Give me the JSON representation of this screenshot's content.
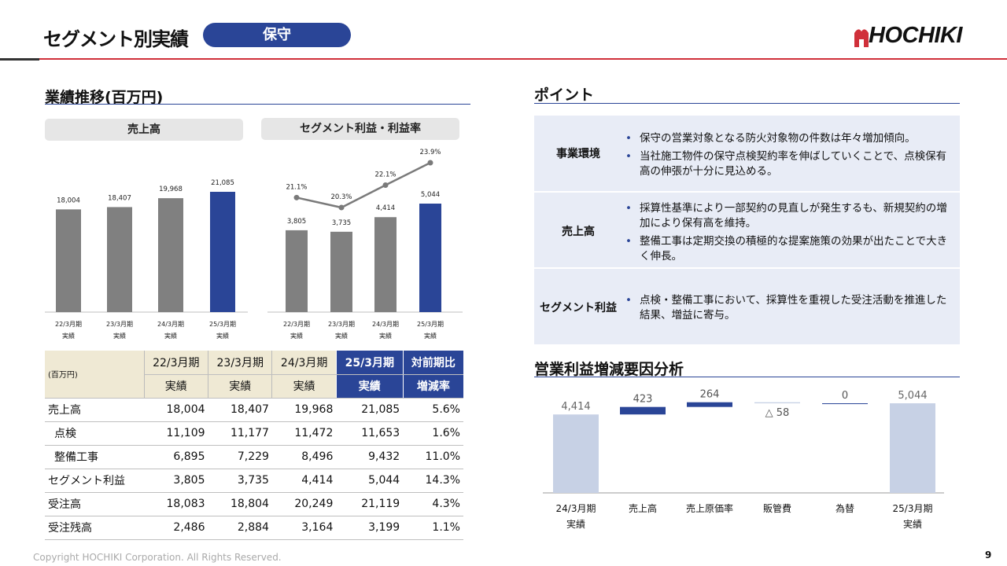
{
  "header": {
    "title": "セグメント別実績",
    "segment": "保守",
    "logo_text": "HOCHIKI"
  },
  "performance": {
    "title": "業績推移(百万円)"
  },
  "chart_data": [
    {
      "type": "bar",
      "title": "売上高",
      "categories": [
        "22/3月期 実績",
        "23/3月期 実績",
        "24/3月期 実績",
        "25/3月期 実績"
      ],
      "category_lines": [
        [
          "22/3月期",
          "実績"
        ],
        [
          "23/3月期",
          "実績"
        ],
        [
          "24/3月期",
          "実績"
        ],
        [
          "25/3月期",
          "実績"
        ]
      ],
      "values": [
        18004,
        18407,
        19968,
        21085
      ],
      "value_labels": [
        "18,004",
        "18,407",
        "19,968",
        "21,085"
      ],
      "colors": [
        "#808080",
        "#808080",
        "#808080",
        "#2a4597"
      ]
    },
    {
      "type": "bar",
      "title": "セグメント利益・利益率",
      "categories": [
        "22/3月期 実績",
        "23/3月期 実績",
        "24/3月期 実績",
        "25/3月期 実績"
      ],
      "category_lines": [
        [
          "22/3月期",
          "実績"
        ],
        [
          "23/3月期",
          "実績"
        ],
        [
          "24/3月期",
          "実績"
        ],
        [
          "25/3月期",
          "実績"
        ]
      ],
      "series": [
        {
          "type": "bar",
          "values": [
            3805,
            3735,
            4414,
            5044
          ],
          "value_labels": [
            "3,805",
            "3,735",
            "4,414",
            "5,044"
          ]
        },
        {
          "type": "line",
          "values": [
            21.1,
            20.3,
            22.1,
            23.9
          ],
          "value_labels": [
            "21.1%",
            "20.3%",
            "22.1%",
            "23.9%"
          ],
          "color": "#7a7a7a"
        }
      ],
      "colors": [
        "#808080",
        "#808080",
        "#808080",
        "#2a4597"
      ]
    },
    {
      "type": "bar",
      "subtype": "waterfall",
      "title": "営業利益増減要因分析",
      "categories": [
        "24/3月期 実績",
        "売上高",
        "売上原価率",
        "販管費",
        "為替",
        "25/3月期 実績"
      ],
      "category_lines": [
        [
          "24/3月期",
          "実績"
        ],
        [
          "売上高"
        ],
        [
          "売上原価率"
        ],
        [
          "販管費"
        ],
        [
          "為替"
        ],
        [
          "25/3月期",
          "実績"
        ]
      ],
      "values": [
        4414,
        423,
        264,
        -58,
        0,
        5044
      ],
      "value_labels": [
        "4,414",
        "423",
        "264",
        "△ 58",
        "0",
        "5,044"
      ],
      "colors": {
        "total": "#c7d1e5",
        "increase": "#2a4597",
        "decrease": "#c7d1e5"
      }
    }
  ],
  "table": {
    "unit": "(百万円)",
    "headers": [
      [
        "22/3月期",
        "実績"
      ],
      [
        "23/3月期",
        "実績"
      ],
      [
        "24/3月期",
        "実績"
      ],
      [
        "25/3月期",
        "実績"
      ],
      [
        "対前期比",
        "増減率"
      ]
    ],
    "rows": [
      {
        "label": "売上高",
        "indent": false,
        "values": [
          "18,004",
          "18,407",
          "19,968",
          "21,085",
          "5.6%"
        ]
      },
      {
        "label": "点検",
        "indent": true,
        "values": [
          "11,109",
          "11,177",
          "11,472",
          "11,653",
          "1.6%"
        ]
      },
      {
        "label": "整備工事",
        "indent": true,
        "values": [
          "6,895",
          "7,229",
          "8,496",
          "9,432",
          "11.0%"
        ]
      },
      {
        "label": "セグメント利益",
        "indent": false,
        "values": [
          "3,805",
          "3,735",
          "4,414",
          "5,044",
          "14.3%"
        ]
      },
      {
        "label": "受注高",
        "indent": false,
        "values": [
          "18,083",
          "18,804",
          "20,249",
          "21,119",
          "4.3%"
        ]
      },
      {
        "label": "受注残高",
        "indent": false,
        "values": [
          "2,486",
          "2,884",
          "3,164",
          "3,199",
          "1.1%"
        ]
      }
    ]
  },
  "points": {
    "title": "ポイント",
    "items": [
      {
        "label": "事業環境",
        "bullets": [
          "保守の営業対象となる防火対象物の件数は年々増加傾向。",
          "当社施工物件の保守点検契約率を伸ばしていくことで、点検保有高の伸張が十分に見込める。"
        ]
      },
      {
        "label": "売上高",
        "bullets": [
          "採算性基準により一部契約の見直しが発生するも、新規契約の増加により保有高を維持。",
          "整備工事は定期交換の積極的な提案施策の効果が出たことで大きく伸長。"
        ]
      },
      {
        "label": "セグメント利益",
        "bullets": [
          "点検・整備工事において、採算性を重視した受注活動を推進した結果、増益に寄与。"
        ]
      }
    ]
  },
  "waterfall": {
    "title": "営業利益増減要因分析"
  },
  "footer": {
    "copyright": "Copyright HOCHIKI Corporation. All Rights Reserved.",
    "page": "9"
  }
}
